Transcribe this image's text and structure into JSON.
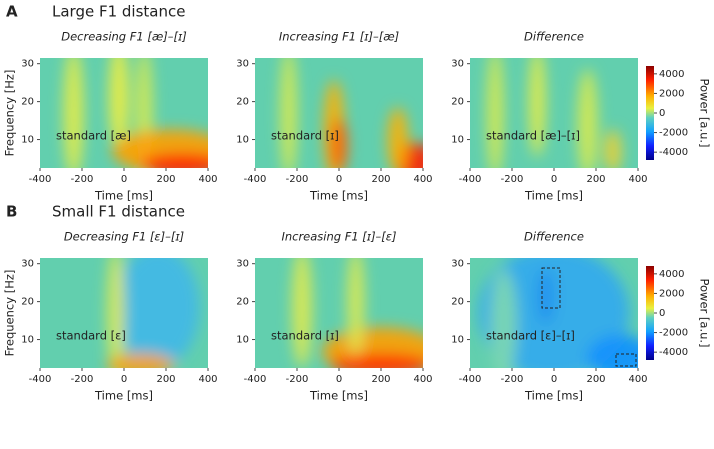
{
  "sections": [
    {
      "label": "A",
      "title": "Large F1 distance"
    },
    {
      "label": "B",
      "title": "Small F1 distance"
    }
  ],
  "chart_data": [
    {
      "type": "heatmap",
      "title": "Decreasing F1 [æ]–[ɪ]",
      "annotation": "standard [æ]",
      "xlabel": "Time [ms]",
      "ylabel": "Frequency [Hz]",
      "xlim": [
        -400,
        400
      ],
      "ylim": [
        2.5,
        31.5
      ],
      "xticks": [
        -400,
        -200,
        0,
        200,
        400
      ],
      "yticks": [
        10,
        20,
        30
      ]
    },
    {
      "type": "heatmap",
      "title": "Increasing F1 [ɪ]–[æ]",
      "annotation": "standard [ɪ]",
      "xlabel": "Time [ms]",
      "xlim": [
        -400,
        400
      ],
      "ylim": [
        2.5,
        31.5
      ],
      "xticks": [
        -400,
        -200,
        0,
        200,
        400
      ],
      "yticks": [
        10,
        20,
        30
      ]
    },
    {
      "type": "heatmap",
      "title": "Difference",
      "annotation": "standard [æ]–[ɪ]",
      "xlabel": "Time [ms]",
      "xlim": [
        -400,
        400
      ],
      "ylim": [
        2.5,
        31.5
      ],
      "xticks": [
        -400,
        -200,
        0,
        200,
        400
      ],
      "yticks": [
        10,
        20,
        30
      ],
      "colorbar": {
        "label": "Power [a.u.]",
        "clim": [
          -4800,
          4800
        ],
        "ticks": [
          4000,
          2000,
          0,
          -2000,
          -4000
        ]
      }
    },
    {
      "type": "heatmap",
      "title": "Decreasing F1 [ɛ]–[ɪ]",
      "annotation": "standard [ɛ]",
      "xlabel": "Time [ms]",
      "ylabel": "Frequency [Hz]",
      "xlim": [
        -400,
        400
      ],
      "ylim": [
        2.5,
        31.5
      ],
      "xticks": [
        -400,
        -200,
        0,
        200,
        400
      ],
      "yticks": [
        10,
        20,
        30
      ]
    },
    {
      "type": "heatmap",
      "title": "Increasing F1 [ɪ]–[ɛ]",
      "annotation": "standard [ɪ]",
      "xlabel": "Time [ms]",
      "xlim": [
        -400,
        400
      ],
      "ylim": [
        2.5,
        31.5
      ],
      "xticks": [
        -400,
        -200,
        0,
        200,
        400
      ],
      "yticks": [
        10,
        20,
        30
      ]
    },
    {
      "type": "heatmap",
      "title": "Difference",
      "annotation": "standard [ɛ]–[ɪ]",
      "xlabel": "Time [ms]",
      "xlim": [
        -400,
        400
      ],
      "ylim": [
        2.5,
        31.5
      ],
      "xticks": [
        -400,
        -200,
        0,
        200,
        400
      ],
      "yticks": [
        10,
        20,
        30
      ],
      "colorbar": {
        "label": "Power [a.u.]",
        "clim": [
          -4800,
          4800
        ],
        "ticks": [
          4000,
          2000,
          0,
          -2000,
          -4000
        ]
      }
    }
  ]
}
